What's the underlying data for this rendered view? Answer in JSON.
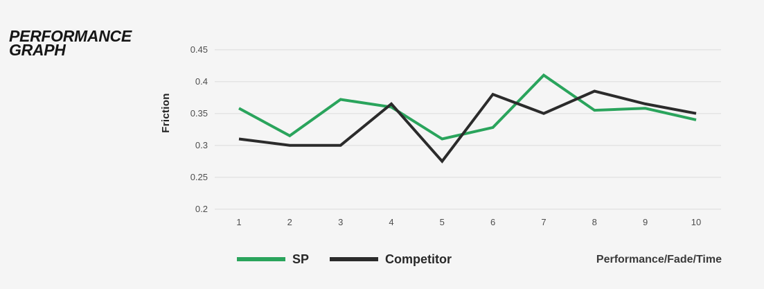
{
  "page": {
    "background": "#f5f5f5"
  },
  "title": {
    "line1": "PERFORMANCE",
    "line2": "GRAPH"
  },
  "chart_data": {
    "type": "line",
    "title": "PERFORMANCE GRAPH",
    "x": [
      1,
      2,
      3,
      4,
      5,
      6,
      7,
      8,
      9,
      10
    ],
    "series": [
      {
        "name": "SP",
        "color": "#2aa45c",
        "values": [
          0.358,
          0.315,
          0.372,
          0.36,
          0.31,
          0.328,
          0.41,
          0.355,
          0.358,
          0.34
        ]
      },
      {
        "name": "Competitor",
        "color": "#2b2b2b",
        "values": [
          0.31,
          0.3,
          0.3,
          0.365,
          0.275,
          0.38,
          0.35,
          0.385,
          0.365,
          0.35
        ]
      }
    ],
    "ylabel": "Friction",
    "xlabel": "Performance/Fade/Time",
    "ylim": [
      0.2,
      0.45
    ],
    "yticks": [
      0.2,
      0.25,
      0.3,
      0.35,
      0.4,
      0.45
    ],
    "grid": true,
    "legend_position": "bottom-left"
  },
  "colors": {
    "background": "#f5f5f5",
    "grid": "#e4e4e4",
    "tick_text": "#4d4d4d",
    "title_text": "#161616",
    "legend_text": "#282828",
    "axis_label_text": "#3a3a3a"
  }
}
